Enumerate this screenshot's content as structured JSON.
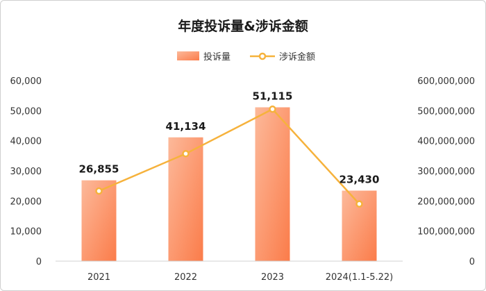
{
  "chart_data": {
    "type": "bar",
    "title": "年度投诉量&涉诉金额",
    "categories": [
      "2021",
      "2022",
      "2023",
      "2024(1.1-5.22)"
    ],
    "series": [
      {
        "name": "投诉量",
        "type": "bar",
        "axis": "left",
        "values": [
          26855,
          41134,
          51115,
          23430
        ],
        "value_labels": [
          "26,855",
          "41,134",
          "51,115",
          "23,430"
        ]
      },
      {
        "name": "涉诉金额",
        "type": "line",
        "axis": "right",
        "values": [
          233000000,
          357000000,
          505000000,
          190000000
        ]
      }
    ],
    "y_left": {
      "min": 0,
      "max": 60000,
      "ticks": [
        "0",
        "10,000",
        "20,000",
        "30,000",
        "40,000",
        "50,000",
        "60,000"
      ]
    },
    "y_right": {
      "min": 0,
      "max": 600000000,
      "ticks": [
        "0",
        "100,000,000",
        "200,000,000",
        "300,000,000",
        "400,000,000",
        "500,000,000",
        "600,000,000"
      ]
    },
    "legend_position": "top",
    "grid": false,
    "colors": {
      "bar_light": "#fcb99a",
      "bar_dark": "#fb7c4a",
      "line": "#f6b23c",
      "axis": "#d0d0d0"
    }
  }
}
